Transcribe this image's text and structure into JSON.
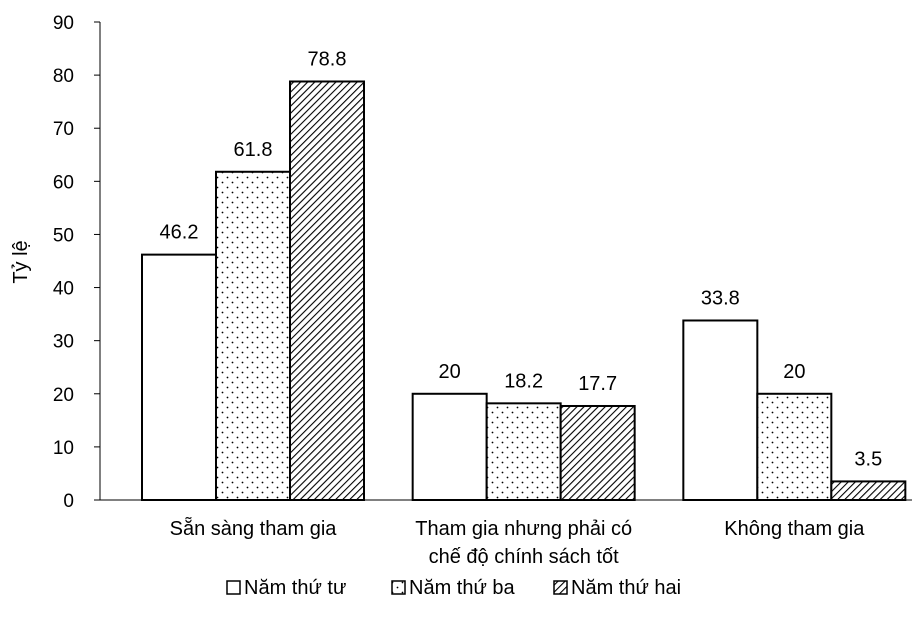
{
  "chart_data": {
    "type": "bar",
    "title": "",
    "xlabel": "",
    "ylabel": "Tỷ lệ",
    "ylim": [
      0,
      90
    ],
    "ytick_step": 10,
    "categories": [
      [
        "Sẵn sàng tham gia"
      ],
      [
        "Tham gia nhưng phải có",
        "chế độ chính sách tốt"
      ],
      [
        "Không tham gia"
      ]
    ],
    "series": [
      {
        "name": "Năm thứ tư",
        "pattern": "solid-white",
        "values": [
          46.2,
          20,
          33.8
        ]
      },
      {
        "name": "Năm thứ ba",
        "pattern": "dots",
        "values": [
          61.8,
          18.2,
          20
        ]
      },
      {
        "name": "Năm thứ hai",
        "pattern": "diagonal-hatch",
        "values": [
          78.8,
          17.7,
          3.5
        ]
      }
    ],
    "grid": false,
    "legend_position": "bottom",
    "colors": {
      "bar_fill": "#ffffff",
      "stroke": "#000000"
    }
  }
}
